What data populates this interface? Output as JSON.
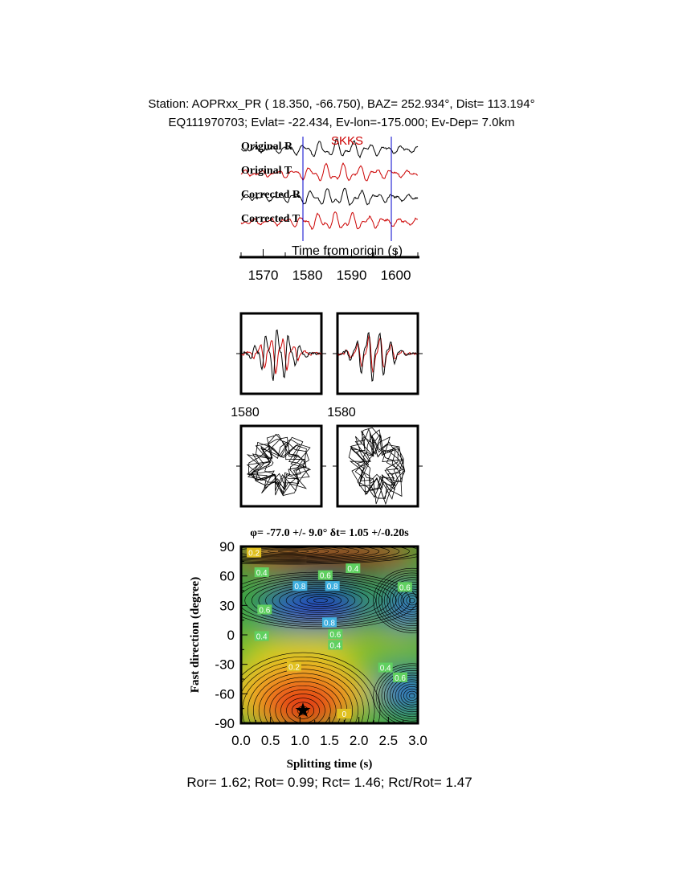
{
  "header": {
    "line1": "Station: AOPRxx_PR (  18.350,  -66.750), BAZ=  252.934°, Dist=  113.194°",
    "line2": "EQ111970703; Evlat= -22.434, Ev-lon=-175.000; Ev-Dep=  7.0km"
  },
  "chart_data": [
    {
      "type": "line",
      "name": "waveforms",
      "traces": [
        {
          "label": "Original R",
          "color": "#000000"
        },
        {
          "label": "Original T",
          "color": "#cc0000"
        },
        {
          "label": "Corrected R",
          "color": "#000000"
        },
        {
          "label": "Corrected T",
          "color": "#cc0000"
        }
      ],
      "phase_label": "SKKS",
      "xlabel": "Time from origin (s)",
      "xlim": [
        1565,
        1605
      ],
      "xticks": [
        1570,
        1580,
        1590,
        1600
      ],
      "window_markers": [
        1579,
        1599
      ],
      "phase_arrival": 1589
    },
    {
      "type": "line",
      "name": "particle-and-overlay",
      "panels": [
        {
          "id": "overlay-original",
          "tick_label": "1580"
        },
        {
          "id": "overlay-corrected",
          "tick_label": "1580"
        }
      ]
    },
    {
      "type": "heatmap",
      "name": "misfit-grid",
      "title": "φ= -77.0 +/- 9.0° δt= 1.05 +/-0.20s",
      "xlabel": "Splitting time (s)",
      "ylabel": "Fast direction (degree)",
      "xlim": [
        0,
        3
      ],
      "ylim": [
        -90,
        90
      ],
      "xticks": [
        "0.0",
        "0.5",
        "1.0",
        "1.5",
        "2.0",
        "2.5",
        "3.0"
      ],
      "yticks": [
        "90",
        "60",
        "30",
        "0",
        "-30",
        "-60",
        "-90"
      ],
      "best_fit": {
        "dt": 1.05,
        "phi": -77.0
      },
      "contour_labels": [
        {
          "text": "0.2",
          "dt": 0.22,
          "phi": 83
        },
        {
          "text": "0.4",
          "dt": 0.35,
          "phi": 63
        },
        {
          "text": "0.6",
          "dt": 1.43,
          "phi": 60
        },
        {
          "text": "0.4",
          "dt": 1.9,
          "phi": 67
        },
        {
          "text": "0.8",
          "dt": 1.0,
          "phi": 49
        },
        {
          "text": "0.8",
          "dt": 1.55,
          "phi": 49
        },
        {
          "text": "0.6",
          "dt": 2.78,
          "phi": 48
        },
        {
          "text": "0.6",
          "dt": 0.4,
          "phi": 25
        },
        {
          "text": "0.8",
          "dt": 1.5,
          "phi": 12
        },
        {
          "text": "0.6",
          "dt": 1.6,
          "phi": 0
        },
        {
          "text": "0.4",
          "dt": 1.6,
          "phi": -11
        },
        {
          "text": "0.4",
          "dt": 0.35,
          "phi": -2
        },
        {
          "text": "0.2",
          "dt": 0.9,
          "phi": -33
        },
        {
          "text": "0.4",
          "dt": 2.45,
          "phi": -34
        },
        {
          "text": "0.6",
          "dt": 2.7,
          "phi": -44
        },
        {
          "text": "0",
          "dt": 1.75,
          "phi": -81
        }
      ]
    }
  ],
  "footer": "Ror= 1.62; Rot= 0.99; Rct= 1.46; Rct/Rot= 1.47"
}
